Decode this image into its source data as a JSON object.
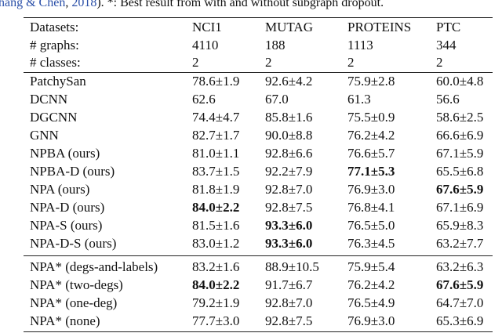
{
  "caption": {
    "parts": [
      {
        "text": "hang & Chen",
        "link": true
      },
      {
        "text": ", ",
        "link": false
      },
      {
        "text": "2018",
        "link": true
      },
      {
        "text": "). *: Best result from with and without subgraph dropout.",
        "link": false
      }
    ]
  },
  "table": {
    "header": [
      [
        "Datasets:",
        "NCI1",
        "MUTAG",
        "PROTEINS",
        "PTC"
      ],
      [
        "# graphs:",
        "4110",
        "188",
        "1113",
        "344"
      ],
      [
        "# classes:",
        "2",
        "2",
        "2",
        "2"
      ]
    ],
    "sections": [
      [
        {
          "cells": [
            "PatchySan",
            "78.6±1.9",
            "92.6±4.2",
            "75.9±2.8",
            "60.0±4.8"
          ],
          "bold": []
        },
        {
          "cells": [
            "DCNN",
            "62.6",
            "67.0",
            "61.3",
            "56.6"
          ],
          "bold": []
        },
        {
          "cells": [
            "DGCNN",
            "74.4±4.7",
            "85.8±1.6",
            "75.5±0.9",
            "58.6±2.5"
          ],
          "bold": []
        },
        {
          "cells": [
            "GNN",
            "82.7±1.7",
            "90.0±8.8",
            "76.2±4.2",
            "66.6±6.9"
          ],
          "bold": []
        },
        {
          "cells": [
            "NPBA (ours)",
            "81.0±1.1",
            "92.8±6.6",
            "76.6±5.7",
            "67.1±5.9"
          ],
          "bold": []
        },
        {
          "cells": [
            "NPBA-D (ours)",
            "83.7±1.5",
            "92.2±7.9",
            "77.1±5.3",
            "65.5±6.8"
          ],
          "bold": [
            3
          ]
        },
        {
          "cells": [
            "NPA (ours)",
            "81.8±1.9",
            "92.8±7.0",
            "76.9±3.0",
            "67.6±5.9"
          ],
          "bold": [
            4
          ]
        },
        {
          "cells": [
            "NPA-D (ours)",
            "84.0±2.2",
            "92.8±7.5",
            "76.8±4.1",
            "67.1±6.9"
          ],
          "bold": [
            1
          ]
        },
        {
          "cells": [
            "NPA-S (ours)",
            "81.5±1.6",
            "93.3±6.0",
            "76.5±5.0",
            "65.9±8.3"
          ],
          "bold": [
            2
          ]
        },
        {
          "cells": [
            "NPA-D-S (ours)",
            "83.0±1.2",
            "93.3±6.0",
            "76.3±4.5",
            "63.2±7.7"
          ],
          "bold": [
            2
          ]
        }
      ],
      [
        {
          "cells": [
            "NPA* (degs-and-labels)",
            "83.2±1.6",
            "88.9±10.5",
            "75.9±5.4",
            "63.2±6.3"
          ],
          "bold": []
        },
        {
          "cells": [
            "NPA* (two-degs)",
            "84.0±2.2",
            "91.7±6.7",
            "76.2±4.2",
            "67.6±5.9"
          ],
          "bold": [
            1,
            4
          ]
        },
        {
          "cells": [
            "NPA* (one-deg)",
            "79.2±1.9",
            "92.8±7.0",
            "76.5±4.9",
            "64.7±7.0"
          ],
          "bold": []
        },
        {
          "cells": [
            "NPA* (none)",
            "77.7±3.0",
            "92.8±7.5",
            "76.9±3.0",
            "65.3±6.9"
          ],
          "bold": []
        }
      ]
    ]
  }
}
